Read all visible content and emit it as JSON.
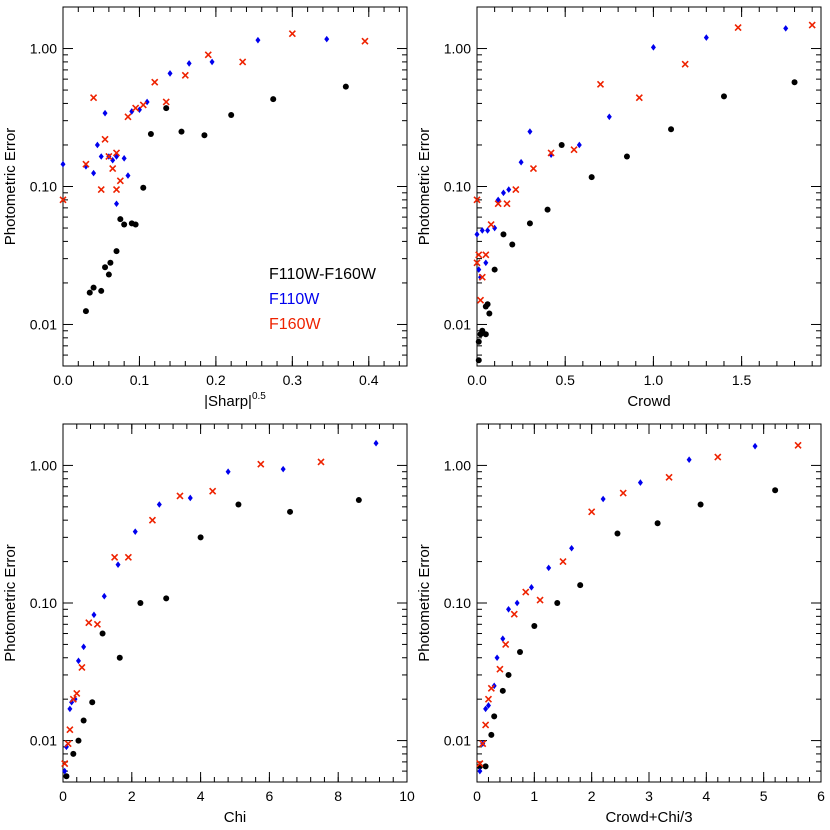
{
  "colors": {
    "F110W-F160W": "#000000",
    "F110W": "#0000ee",
    "F160W": "#ee2200"
  },
  "y_ticks": [
    {
      "value": 0.01,
      "label": "0.01"
    },
    {
      "value": 0.1,
      "label": "0.10"
    },
    {
      "value": 1.0,
      "label": "1.00"
    }
  ],
  "legend": {
    "entries": [
      {
        "label": "F110W-F160W",
        "series": "F110W-F160W"
      },
      {
        "label": "F110W",
        "series": "F110W"
      },
      {
        "label": "F160W",
        "series": "F160W"
      }
    ]
  },
  "chart_data": [
    {
      "type": "scatter",
      "xlabel": "|Sharp|",
      "xlabel_superscript": "0.5",
      "ylabel": "Photometric Error",
      "xlim": [
        0,
        0.45
      ],
      "ylim": [
        0.005,
        2.0
      ],
      "yscale": "log",
      "x_ticks": [
        0,
        0.1,
        0.2,
        0.3,
        0.4
      ],
      "x_tick_labels": [
        "0.0",
        "0.1",
        "0.2",
        "0.3",
        "0.4"
      ],
      "show_legend": true,
      "series": [
        {
          "name": "F110W-F160W",
          "marker": "dot",
          "points": [
            [
              0.03,
              0.0125
            ],
            [
              0.035,
              0.017
            ],
            [
              0.04,
              0.0185
            ],
            [
              0.05,
              0.0175
            ],
            [
              0.055,
              0.026
            ],
            [
              0.06,
              0.023
            ],
            [
              0.062,
              0.028
            ],
            [
              0.07,
              0.034
            ],
            [
              0.075,
              0.058
            ],
            [
              0.08,
              0.053
            ],
            [
              0.09,
              0.054
            ],
            [
              0.095,
              0.053
            ],
            [
              0.105,
              0.098
            ],
            [
              0.115,
              0.24
            ],
            [
              0.135,
              0.37
            ],
            [
              0.155,
              0.25
            ],
            [
              0.185,
              0.235
            ],
            [
              0.22,
              0.33
            ],
            [
              0.275,
              0.43
            ],
            [
              0.37,
              0.53
            ]
          ]
        },
        {
          "name": "F110W",
          "marker": "diamond",
          "points": [
            [
              0.0,
              0.145
            ],
            [
              0.03,
              0.14
            ],
            [
              0.04,
              0.125
            ],
            [
              0.045,
              0.2
            ],
            [
              0.05,
              0.165
            ],
            [
              0.055,
              0.34
            ],
            [
              0.06,
              0.165
            ],
            [
              0.065,
              0.155
            ],
            [
              0.07,
              0.165
            ],
            [
              0.07,
              0.075
            ],
            [
              0.08,
              0.16
            ],
            [
              0.085,
              0.12
            ],
            [
              0.09,
              0.35
            ],
            [
              0.1,
              0.36
            ],
            [
              0.11,
              0.41
            ],
            [
              0.14,
              0.66
            ],
            [
              0.165,
              0.78
            ],
            [
              0.195,
              0.8
            ],
            [
              0.255,
              1.15
            ],
            [
              0.345,
              1.17
            ]
          ]
        },
        {
          "name": "F160W",
          "marker": "x",
          "points": [
            [
              0.0,
              0.08
            ],
            [
              0.03,
              0.145
            ],
            [
              0.04,
              0.44
            ],
            [
              0.05,
              0.095
            ],
            [
              0.055,
              0.22
            ],
            [
              0.06,
              0.165
            ],
            [
              0.065,
              0.135
            ],
            [
              0.07,
              0.175
            ],
            [
              0.07,
              0.095
            ],
            [
              0.075,
              0.11
            ],
            [
              0.085,
              0.32
            ],
            [
              0.095,
              0.37
            ],
            [
              0.105,
              0.39
            ],
            [
              0.12,
              0.57
            ],
            [
              0.135,
              0.41
            ],
            [
              0.16,
              0.64
            ],
            [
              0.19,
              0.9
            ],
            [
              0.235,
              0.8
            ],
            [
              0.3,
              1.28
            ],
            [
              0.395,
              1.13
            ]
          ]
        }
      ]
    },
    {
      "type": "scatter",
      "xlabel": "Crowd",
      "ylabel": "Photometric Error",
      "xlim": [
        0,
        1.95
      ],
      "ylim": [
        0.005,
        2.0
      ],
      "yscale": "log",
      "x_ticks": [
        0,
        0.5,
        1.0,
        1.5
      ],
      "x_tick_labels": [
        "0.0",
        "0.5",
        "1.0",
        "1.5"
      ],
      "show_legend": false,
      "series": [
        {
          "name": "F110W-F160W",
          "marker": "dot",
          "points": [
            [
              0.01,
              0.0055
            ],
            [
              0.01,
              0.0075
            ],
            [
              0.02,
              0.0085
            ],
            [
              0.03,
              0.009
            ],
            [
              0.05,
              0.0085
            ],
            [
              0.05,
              0.0135
            ],
            [
              0.06,
              0.014
            ],
            [
              0.07,
              0.012
            ],
            [
              0.1,
              0.025
            ],
            [
              0.15,
              0.045
            ],
            [
              0.2,
              0.038
            ],
            [
              0.3,
              0.054
            ],
            [
              0.4,
              0.068
            ],
            [
              0.48,
              0.2
            ],
            [
              0.65,
              0.117
            ],
            [
              0.85,
              0.165
            ],
            [
              1.1,
              0.26
            ],
            [
              1.4,
              0.45
            ],
            [
              1.8,
              0.57
            ]
          ]
        },
        {
          "name": "F110W",
          "marker": "diamond",
          "points": [
            [
              0.0,
              0.045
            ],
            [
              0.01,
              0.025
            ],
            [
              0.02,
              0.022
            ],
            [
              0.03,
              0.048
            ],
            [
              0.05,
              0.028
            ],
            [
              0.06,
              0.048
            ],
            [
              0.1,
              0.05
            ],
            [
              0.12,
              0.08
            ],
            [
              0.15,
              0.09
            ],
            [
              0.18,
              0.095
            ],
            [
              0.25,
              0.15
            ],
            [
              0.3,
              0.25
            ],
            [
              0.42,
              0.17
            ],
            [
              0.58,
              0.2
            ],
            [
              0.75,
              0.32
            ],
            [
              1.0,
              1.02
            ],
            [
              1.3,
              1.2
            ],
            [
              1.75,
              1.4
            ]
          ]
        },
        {
          "name": "F160W",
          "marker": "x",
          "points": [
            [
              0.0,
              0.08
            ],
            [
              0.0,
              0.028
            ],
            [
              0.01,
              0.032
            ],
            [
              0.02,
              0.015
            ],
            [
              0.03,
              0.022
            ],
            [
              0.05,
              0.032
            ],
            [
              0.08,
              0.053
            ],
            [
              0.12,
              0.075
            ],
            [
              0.17,
              0.075
            ],
            [
              0.22,
              0.095
            ],
            [
              0.32,
              0.135
            ],
            [
              0.42,
              0.175
            ],
            [
              0.55,
              0.185
            ],
            [
              0.7,
              0.55
            ],
            [
              0.92,
              0.44
            ],
            [
              1.18,
              0.77
            ],
            [
              1.48,
              1.42
            ],
            [
              1.9,
              1.48
            ]
          ]
        }
      ]
    },
    {
      "type": "scatter",
      "xlabel": "Chi",
      "ylabel": "Photometric Error",
      "xlim": [
        0,
        10
      ],
      "ylim": [
        0.005,
        2.0
      ],
      "yscale": "log",
      "x_ticks": [
        0,
        2,
        4,
        6,
        8,
        10
      ],
      "x_tick_labels": [
        "0",
        "2",
        "4",
        "6",
        "8",
        "10"
      ],
      "show_legend": false,
      "series": [
        {
          "name": "F110W-F160W",
          "marker": "dot",
          "points": [
            [
              0.1,
              0.0055
            ],
            [
              0.3,
              0.008
            ],
            [
              0.45,
              0.01
            ],
            [
              0.6,
              0.014
            ],
            [
              0.85,
              0.019
            ],
            [
              1.15,
              0.06
            ],
            [
              1.65,
              0.04
            ],
            [
              2.25,
              0.1
            ],
            [
              3.0,
              0.108
            ],
            [
              4.0,
              0.3
            ],
            [
              5.1,
              0.52
            ],
            [
              6.6,
              0.46
            ],
            [
              8.6,
              0.56
            ]
          ]
        },
        {
          "name": "F110W",
          "marker": "diamond",
          "points": [
            [
              0.05,
              0.006
            ],
            [
              0.1,
              0.009
            ],
            [
              0.2,
              0.017
            ],
            [
              0.25,
              0.019
            ],
            [
              0.35,
              0.02
            ],
            [
              0.45,
              0.038
            ],
            [
              0.6,
              0.048
            ],
            [
              0.9,
              0.082
            ],
            [
              1.2,
              0.112
            ],
            [
              1.6,
              0.19
            ],
            [
              2.1,
              0.33
            ],
            [
              2.8,
              0.52
            ],
            [
              3.7,
              0.58
            ],
            [
              4.8,
              0.9
            ],
            [
              6.4,
              0.94
            ],
            [
              9.1,
              1.45
            ]
          ]
        },
        {
          "name": "F160W",
          "marker": "x",
          "points": [
            [
              0.05,
              0.0068
            ],
            [
              0.15,
              0.0095
            ],
            [
              0.2,
              0.012
            ],
            [
              0.3,
              0.02
            ],
            [
              0.4,
              0.022
            ],
            [
              0.55,
              0.034
            ],
            [
              0.75,
              0.072
            ],
            [
              1.0,
              0.07
            ],
            [
              1.5,
              0.215
            ],
            [
              1.9,
              0.215
            ],
            [
              2.6,
              0.4
            ],
            [
              3.4,
              0.6
            ],
            [
              4.35,
              0.65
            ],
            [
              5.75,
              1.02
            ],
            [
              7.5,
              1.06
            ]
          ]
        }
      ]
    },
    {
      "type": "scatter",
      "xlabel": "Crowd+Chi/3",
      "ylabel": "Photometric Error",
      "xlim": [
        0,
        6
      ],
      "ylim": [
        0.005,
        2.0
      ],
      "yscale": "log",
      "x_ticks": [
        0,
        1,
        2,
        3,
        4,
        5,
        6
      ],
      "x_tick_labels": [
        "0",
        "1",
        "2",
        "3",
        "4",
        "5",
        "6"
      ],
      "show_legend": false,
      "series": [
        {
          "name": "F110W-F160W",
          "marker": "dot",
          "points": [
            [
              0.05,
              0.0065
            ],
            [
              0.15,
              0.0065
            ],
            [
              0.25,
              0.011
            ],
            [
              0.3,
              0.015
            ],
            [
              0.45,
              0.023
            ],
            [
              0.55,
              0.03
            ],
            [
              0.75,
              0.044
            ],
            [
              1.0,
              0.068
            ],
            [
              1.4,
              0.1
            ],
            [
              1.8,
              0.135
            ],
            [
              2.45,
              0.32
            ],
            [
              3.15,
              0.38
            ],
            [
              3.9,
              0.52
            ],
            [
              5.2,
              0.66
            ]
          ]
        },
        {
          "name": "F110W",
          "marker": "diamond",
          "points": [
            [
              0.05,
              0.006
            ],
            [
              0.1,
              0.0095
            ],
            [
              0.15,
              0.017
            ],
            [
              0.2,
              0.018
            ],
            [
              0.3,
              0.025
            ],
            [
              0.35,
              0.04
            ],
            [
              0.45,
              0.055
            ],
            [
              0.55,
              0.09
            ],
            [
              0.7,
              0.1
            ],
            [
              0.95,
              0.13
            ],
            [
              1.25,
              0.18
            ],
            [
              1.65,
              0.25
            ],
            [
              2.2,
              0.57
            ],
            [
              2.85,
              0.75
            ],
            [
              3.7,
              1.1
            ],
            [
              4.85,
              1.38
            ]
          ]
        },
        {
          "name": "F160W",
          "marker": "x",
          "points": [
            [
              0.05,
              0.0068
            ],
            [
              0.1,
              0.0095
            ],
            [
              0.15,
              0.013
            ],
            [
              0.2,
              0.02
            ],
            [
              0.25,
              0.024
            ],
            [
              0.4,
              0.033
            ],
            [
              0.5,
              0.05
            ],
            [
              0.65,
              0.083
            ],
            [
              0.85,
              0.12
            ],
            [
              1.1,
              0.105
            ],
            [
              1.5,
              0.2
            ],
            [
              2.0,
              0.46
            ],
            [
              2.55,
              0.63
            ],
            [
              3.35,
              0.82
            ],
            [
              4.2,
              1.15
            ],
            [
              5.6,
              1.4
            ]
          ]
        }
      ]
    }
  ]
}
